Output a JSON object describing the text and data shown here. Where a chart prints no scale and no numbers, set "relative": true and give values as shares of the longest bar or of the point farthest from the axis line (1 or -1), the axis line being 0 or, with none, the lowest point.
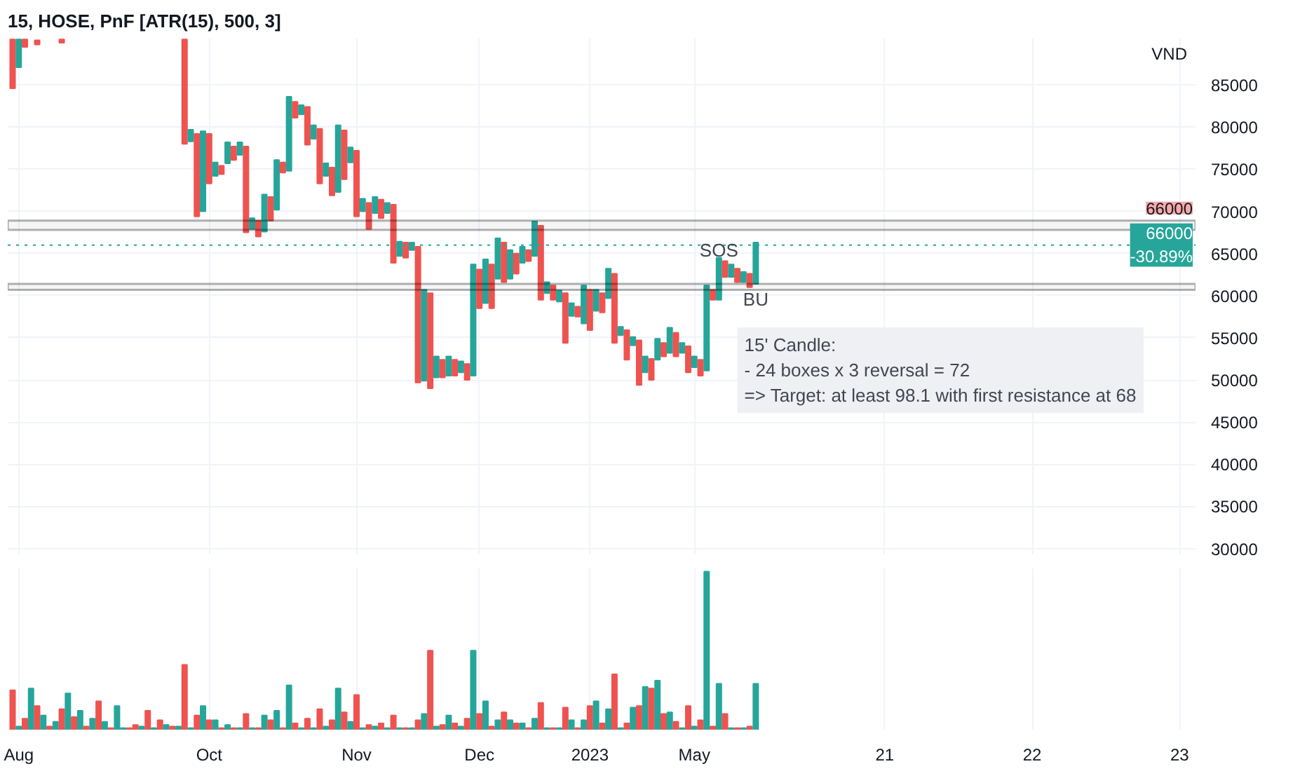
{
  "chart_data": [
    {
      "type": "bar",
      "title": "15, HOSE, PnF [ATR(15), 500, 3]",
      "ylabel": "VND",
      "tick_labels": "y",
      "grid": true,
      "categories": [
        null,
        "Aug",
        null,
        null,
        null,
        null,
        null,
        null,
        null,
        null,
        null,
        null,
        null,
        null,
        null,
        null,
        null,
        null,
        null,
        null,
        null,
        null,
        null,
        null,
        null,
        null,
        null,
        null,
        null,
        null,
        null,
        null,
        "Oct",
        null,
        null,
        null,
        null,
        null,
        null,
        null,
        null,
        null,
        null,
        null,
        null,
        null,
        null,
        null,
        null,
        null,
        null,
        null,
        null,
        null,
        null,
        null,
        "Nov",
        null,
        null,
        null,
        null,
        null,
        null,
        null,
        null,
        null,
        null,
        null,
        null,
        null,
        null,
        null,
        null,
        null,
        null,
        null,
        "Dec",
        null,
        null,
        null,
        null,
        null,
        null,
        null,
        null,
        null,
        null,
        null,
        null,
        null,
        null,
        null,
        null,
        null,
        "2023",
        null,
        null,
        null,
        null,
        null,
        null,
        null,
        null,
        null,
        null,
        null,
        null,
        null,
        null,
        null,
        null,
        "May",
        null,
        null,
        null,
        null,
        null,
        null,
        null,
        null,
        null,
        null,
        null,
        null,
        null,
        null,
        null,
        null,
        null,
        null,
        null,
        null,
        null,
        null,
        null,
        null,
        null,
        null,
        null,
        null,
        null,
        null,
        "21",
        null,
        null,
        null,
        null,
        null,
        null,
        null,
        null,
        null,
        null,
        null,
        null,
        null,
        null,
        null,
        null,
        null,
        null,
        null,
        null,
        null,
        null,
        null,
        "22",
        null,
        null,
        null,
        null,
        null,
        null,
        null,
        null,
        null,
        null,
        null,
        null,
        null,
        null,
        null,
        null,
        null,
        null,
        null,
        null,
        null,
        null,
        null,
        "23",
        null,
        null
      ],
      "values": [
        5800,
        3300,
        900,
        null,
        500,
        null,
        null,
        null,
        400,
        null,
        null,
        null,
        null,
        null,
        null,
        null,
        null,
        null,
        null,
        null,
        null,
        null,
        null,
        null,
        null,
        null,
        null,
        null,
        12400,
        1400,
        9800,
        9500,
        5900,
        1600,
        1000,
        2500,
        1600,
        1500,
        10200,
        1300,
        1900,
        4400,
        2800,
        5900,
        1200,
        8800,
        1900,
        1100,
        4500,
        1600,
        6500,
        1500,
        3300,
        7900,
        5800,
        1800,
        7800,
        1500,
        3100,
        1900,
        2200,
        1200,
        6900,
        1700,
        1800,
        900,
        16100,
        10800,
        11300,
        2500,
        2100,
        2300,
        1900,
        1300,
        1900,
        13200,
        4600,
        5200,
        5200,
        4800,
        4700,
        3400,
        2400,
        1900,
        1300,
        4100,
        8800,
        1300,
        1700,
        1300,
        5900,
        1500,
        1200,
        4500,
        4800,
        2500,
        2300,
        3500,
        8200,
        1000,
        3500,
        1000,
        5300,
        1900,
        2500,
        2500,
        1600,
        3000,
        2800,
        1200,
        3100,
        1300,
        1900,
        10100,
        1200,
        5000,
        1900,
        1500,
        1600,
        1200,
        1600,
        4900,
        null,
        null,
        null,
        null,
        null,
        null,
        null,
        null,
        null,
        null,
        null,
        null,
        null,
        null,
        null,
        null,
        null,
        null,
        null,
        null,
        null,
        null,
        null,
        null,
        null,
        null,
        null,
        null,
        null,
        null,
        null,
        null,
        null,
        null,
        null,
        null,
        null,
        null,
        null,
        null,
        null,
        null,
        null,
        null,
        null,
        null,
        null,
        null,
        null,
        null,
        null,
        null,
        null,
        null,
        null,
        null,
        null,
        null,
        null,
        null,
        null,
        null,
        null,
        null,
        null,
        null,
        null,
        null,
        null,
        null,
        null
      ],
      "base": [
        84600,
        87100,
        89500,
        null,
        89800,
        null,
        null,
        null,
        90000,
        null,
        null,
        null,
        null,
        null,
        null,
        null,
        null,
        null,
        null,
        null,
        null,
        null,
        null,
        null,
        null,
        null,
        null,
        null,
        78000,
        78300,
        69400,
        70000,
        73300,
        74200,
        74400,
        75700,
        76100,
        76700,
        67500,
        67900,
        67000,
        67600,
        68900,
        70200,
        74600,
        74800,
        81100,
        81500,
        77900,
        78600,
        73300,
        74200,
        71900,
        72300,
        73800,
        75800,
        69400,
        70000,
        67900,
        69800,
        69200,
        69800,
        63900,
        64700,
        64500,
        65400,
        49700,
        49900,
        49000,
        50300,
        50300,
        50500,
        50500,
        50900,
        50000,
        50500,
        58500,
        59100,
        58500,
        62000,
        61600,
        62000,
        62600,
        63900,
        64100,
        64700,
        59500,
        60300,
        59500,
        59300,
        54400,
        57600,
        57500,
        56700,
        55900,
        58200,
        58000,
        59700,
        54400,
        55300,
        52400,
        54100,
        49400,
        50900,
        50000,
        52400,
        52800,
        53200,
        52800,
        53200,
        50900,
        51500,
        50500,
        51100,
        59500,
        59500,
        62200,
        62200,
        61600,
        61600,
        61000,
        61400,
        null,
        null,
        null,
        null,
        null,
        null,
        null,
        null,
        null,
        null,
        null,
        null,
        null,
        null,
        null,
        null,
        null,
        null,
        null,
        null,
        null,
        null,
        null,
        null,
        null,
        null,
        null,
        null,
        null,
        null,
        null,
        null,
        null,
        null,
        null,
        null,
        null,
        null,
        null,
        null,
        null,
        null,
        null,
        null,
        null,
        null,
        null,
        null,
        null,
        null,
        null,
        null,
        null,
        null,
        null,
        null,
        null,
        null,
        null,
        null,
        null,
        null,
        null,
        null,
        null,
        null,
        null,
        null,
        null,
        null,
        null
      ],
      "colors": [
        "#ef5350",
        "#26a69a",
        "#ef5350",
        null,
        "#ef5350",
        null,
        null,
        null,
        "#ef5350",
        null,
        null,
        null,
        null,
        null,
        null,
        null,
        null,
        null,
        null,
        null,
        null,
        null,
        null,
        null,
        null,
        null,
        null,
        null,
        "#ef5350",
        "#26a69a",
        "#ef5350",
        "#26a69a",
        "#ef5350",
        "#26a69a",
        "#ef5350",
        "#26a69a",
        "#ef5350",
        "#26a69a",
        "#ef5350",
        "#26a69a",
        "#ef5350",
        "#26a69a",
        "#ef5350",
        "#26a69a",
        "#ef5350",
        "#26a69a",
        "#ef5350",
        "#26a69a",
        "#ef5350",
        "#26a69a",
        "#ef5350",
        "#26a69a",
        "#ef5350",
        "#26a69a",
        "#ef5350",
        "#26a69a",
        "#ef5350",
        "#26a69a",
        "#ef5350",
        "#26a69a",
        "#ef5350",
        "#26a69a",
        "#ef5350",
        "#26a69a",
        "#ef5350",
        "#26a69a",
        "#ef5350",
        "#26a69a",
        "#ef5350",
        "#26a69a",
        "#ef5350",
        "#26a69a",
        "#ef5350",
        "#26a69a",
        "#ef5350",
        "#26a69a",
        "#ef5350",
        "#26a69a",
        "#ef5350",
        "#26a69a",
        "#ef5350",
        "#26a69a",
        "#ef5350",
        "#26a69a",
        "#ef5350",
        "#26a69a",
        "#ef5350",
        "#26a69a",
        "#ef5350",
        "#26a69a",
        "#ef5350",
        "#26a69a",
        "#ef5350",
        "#26a69a",
        "#ef5350",
        "#26a69a",
        "#ef5350",
        "#26a69a",
        "#ef5350",
        "#26a69a",
        "#ef5350",
        "#26a69a",
        "#ef5350",
        "#26a69a",
        "#ef5350",
        "#26a69a",
        "#ef5350",
        "#26a69a",
        "#ef5350",
        "#26a69a",
        "#ef5350",
        "#26a69a",
        "#ef5350",
        "#26a69a",
        "#ef5350",
        "#26a69a",
        "#ef5350",
        "#26a69a",
        "#ef5350",
        "#26a69a",
        "#ef5350",
        "#26a69a",
        null,
        null,
        null,
        null,
        null,
        null,
        null,
        null,
        null,
        null,
        null,
        null,
        null,
        null,
        null,
        null,
        null,
        null,
        null,
        null,
        null,
        null,
        null,
        null,
        null,
        null,
        null,
        null,
        null,
        null,
        null,
        null,
        null,
        null,
        null,
        null,
        null,
        null,
        null,
        null,
        null,
        null,
        null,
        null,
        null,
        null,
        null,
        null,
        null,
        null,
        null,
        null,
        null,
        null,
        null,
        null,
        null,
        null,
        null,
        null,
        null,
        null,
        null,
        null,
        null,
        null,
        null,
        null,
        null,
        null,
        null
      ],
      "ylim": [
        29300,
        90500
      ],
      "yticks": [
        30000,
        35000,
        40000,
        45000,
        50000,
        55000,
        60000,
        65000,
        70000,
        75000,
        80000,
        85000
      ],
      "ref_lines": [
        {
          "axis": "y",
          "value": 66000,
          "label": "66000\n-30.89%",
          "color": "#26a69a",
          "line_style": "dotted"
        }
      ],
      "bands": [
        {
          "axis": "y",
          "from": 67800,
          "to": 68900,
          "color": "#000000"
        },
        {
          "axis": "y",
          "from": 60700,
          "to": 61400,
          "color": "#000000"
        }
      ],
      "annotations": [
        "SOS",
        "BU",
        "15' Candle:\n- 24 boxes x 3 reversal = 72\n=> Target: at least 98.1 with first resistance at 68",
        "66000"
      ]
    },
    {
      "type": "bar",
      "relative": true,
      "tick_labels": "x",
      "grid": "x",
      "categories": [
        null,
        "Aug",
        null,
        null,
        null,
        null,
        null,
        null,
        null,
        null,
        null,
        null,
        null,
        null,
        null,
        null,
        null,
        null,
        null,
        null,
        null,
        null,
        null,
        null,
        null,
        null,
        null,
        null,
        null,
        null,
        null,
        null,
        "Oct",
        null,
        null,
        null,
        null,
        null,
        null,
        null,
        null,
        null,
        null,
        null,
        null,
        null,
        null,
        null,
        null,
        null,
        null,
        null,
        null,
        null,
        null,
        null,
        "Nov",
        null,
        null,
        null,
        null,
        null,
        null,
        null,
        null,
        null,
        null,
        null,
        null,
        null,
        null,
        null,
        null,
        null,
        null,
        null,
        "Dec",
        null,
        null,
        null,
        null,
        null,
        null,
        null,
        null,
        null,
        null,
        null,
        null,
        null,
        null,
        null,
        null,
        null,
        "2023",
        null,
        null,
        null,
        null,
        null,
        null,
        null,
        null,
        null,
        null,
        null,
        null,
        null,
        null,
        null,
        null,
        "May",
        null,
        null,
        null,
        null,
        null,
        null,
        null,
        null,
        null,
        null,
        null,
        null,
        null,
        null,
        null,
        null,
        null,
        null,
        null,
        null,
        null,
        null,
        null,
        null,
        null,
        null,
        null,
        null,
        null,
        null,
        "21",
        null,
        null,
        null,
        null,
        null,
        null,
        null,
        null,
        null,
        null,
        null,
        null,
        null,
        null,
        null,
        null,
        null,
        null,
        null,
        null,
        null,
        null,
        null,
        "22",
        null,
        null,
        null,
        null,
        null,
        null,
        null,
        null,
        null,
        null,
        null,
        null,
        null,
        null,
        null,
        null,
        null,
        null,
        null,
        null,
        null,
        null,
        null,
        "23",
        null,
        null
      ],
      "values": [
        0.25,
        0.02,
        0.07,
        0.26,
        0.15,
        0.09,
        0.02,
        0.05,
        0.13,
        0.23,
        0.08,
        0.12,
        0.02,
        0.07,
        0.18,
        0.05,
        0.01,
        0.15,
        0.01,
        0.01,
        0.03,
        0.02,
        0.12,
        0.01,
        0.06,
        0.03,
        0.02,
        0.02,
        0.41,
        0.01,
        0.09,
        0.15,
        0.06,
        0.06,
        0.01,
        0.03,
        0.01,
        0.01,
        0.1,
        0.01,
        0.01,
        0.09,
        0.06,
        0.12,
        0.01,
        0.28,
        0.04,
        0.01,
        0.07,
        0.01,
        0.13,
        0.02,
        0.06,
        0.26,
        0.11,
        0.05,
        0.22,
        0.01,
        0.03,
        0.02,
        0.04,
        0.01,
        0.09,
        0.01,
        0.01,
        0.01,
        0.06,
        0.1,
        0.5,
        0.02,
        0.03,
        0.09,
        0.04,
        0.02,
        0.07,
        0.5,
        0.1,
        0.18,
        0.02,
        0.06,
        0.11,
        0.06,
        0.04,
        0.04,
        0.01,
        0.07,
        0.17,
        0.01,
        0.01,
        0.01,
        0.14,
        0.06,
        0.01,
        0.06,
        0.15,
        0.18,
        0.04,
        0.13,
        0.35,
        0.01,
        0.04,
        0.14,
        0.15,
        0.27,
        0.26,
        0.31,
        0.1,
        0.11,
        0.05,
        0.01,
        0.15,
        0.02,
        0.06,
        1,
        0.02,
        0.29,
        0.1,
        0.01,
        0.01,
        0.01,
        0.02,
        0.29,
        null,
        null,
        null,
        null,
        null,
        null,
        null,
        null,
        null,
        null,
        null,
        null,
        null,
        null,
        null,
        null,
        null,
        null,
        null,
        null,
        null,
        null,
        null,
        null,
        null,
        null,
        null,
        null,
        null,
        null,
        null,
        null,
        null,
        null,
        null,
        null,
        null,
        null,
        null,
        null,
        null,
        null,
        null,
        null,
        null,
        null,
        null,
        null,
        null,
        null,
        null,
        null,
        null,
        null,
        null,
        null,
        null,
        null,
        null,
        null,
        null,
        null,
        null,
        null,
        null,
        null,
        null,
        null,
        null,
        null,
        null
      ],
      "colors": [
        "#ef5350",
        "#26a69a",
        "#ef5350",
        "#26a69a",
        "#ef5350",
        "#26a69a",
        "#ef5350",
        "#26a69a",
        "#ef5350",
        "#26a69a",
        "#ef5350",
        "#26a69a",
        "#ef5350",
        "#26a69a",
        "#ef5350",
        "#26a69a",
        "#ef5350",
        "#26a69a",
        "#26a69a",
        "#ef5350",
        "#ef5350",
        "#26a69a",
        "#ef5350",
        "#26a69a",
        "#ef5350",
        "#26a69a",
        "#ef5350",
        "#26a69a",
        "#ef5350",
        "#26a69a",
        "#ef5350",
        "#26a69a",
        "#ef5350",
        "#26a69a",
        "#ef5350",
        "#26a69a",
        "#ef5350",
        "#26a69a",
        "#ef5350",
        "#26a69a",
        "#ef5350",
        "#26a69a",
        "#ef5350",
        "#26a69a",
        "#ef5350",
        "#26a69a",
        "#ef5350",
        "#26a69a",
        "#ef5350",
        "#26a69a",
        "#ef5350",
        "#26a69a",
        "#ef5350",
        "#26a69a",
        "#ef5350",
        "#26a69a",
        "#ef5350",
        "#26a69a",
        "#ef5350",
        "#26a69a",
        "#ef5350",
        "#26a69a",
        "#ef5350",
        "#26a69a",
        "#ef5350",
        "#26a69a",
        "#ef5350",
        "#26a69a",
        "#ef5350",
        "#26a69a",
        "#ef5350",
        "#26a69a",
        "#ef5350",
        "#26a69a",
        "#ef5350",
        "#26a69a",
        "#ef5350",
        "#26a69a",
        "#ef5350",
        "#26a69a",
        "#ef5350",
        "#26a69a",
        "#ef5350",
        "#26a69a",
        "#ef5350",
        "#26a69a",
        "#ef5350",
        "#26a69a",
        "#ef5350",
        "#26a69a",
        "#ef5350",
        "#26a69a",
        "#ef5350",
        "#26a69a",
        "#ef5350",
        "#26a69a",
        "#ef5350",
        "#26a69a",
        "#ef5350",
        "#26a69a",
        "#ef5350",
        "#26a69a",
        "#ef5350",
        "#26a69a",
        "#ef5350",
        "#26a69a",
        "#ef5350",
        "#26a69a",
        "#ef5350",
        "#26a69a",
        "#ef5350",
        "#26a69a",
        "#ef5350",
        "#26a69a",
        "#ef5350",
        "#26a69a",
        "#ef5350",
        "#26a69a",
        "#ef5350",
        "#26a69a",
        "#ef5350",
        "#26a69a",
        null,
        null,
        null,
        null,
        null,
        null,
        null,
        null,
        null,
        null,
        null,
        null,
        null,
        null,
        null,
        null,
        null,
        null,
        null,
        null,
        null,
        null,
        null,
        null,
        null,
        null,
        null,
        null,
        null,
        null,
        null,
        null,
        null,
        null,
        null,
        null,
        null,
        null,
        null,
        null,
        null,
        null,
        null,
        null,
        null,
        null,
        null,
        null,
        null,
        null,
        null,
        null,
        null,
        null,
        null,
        null,
        null,
        null,
        null,
        null,
        null,
        null,
        null,
        null,
        null,
        null,
        null,
        null,
        null,
        null,
        null
      ]
    }
  ]
}
